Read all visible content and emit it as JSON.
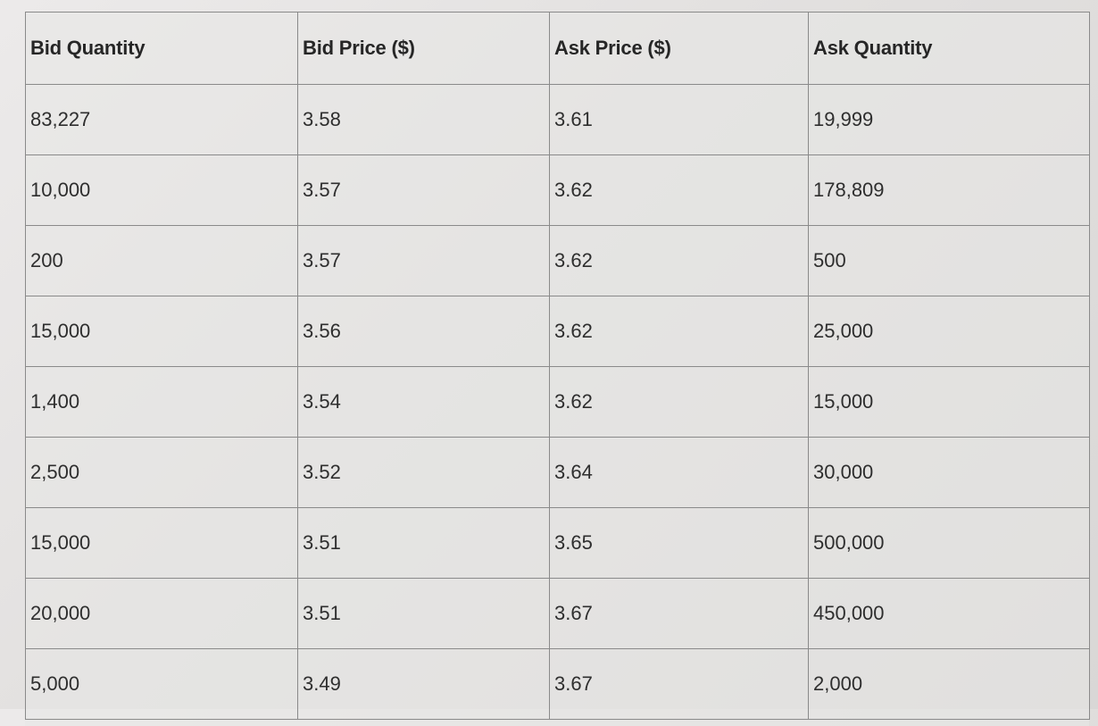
{
  "table": {
    "headers": [
      "Bid Quantity",
      "Bid Price ($)",
      "Ask Price ($)",
      "Ask Quantity"
    ],
    "rows": [
      [
        "83,227",
        "3.58",
        "3.61",
        "19,999"
      ],
      [
        "10,000",
        "3.57",
        "3.62",
        "178,809"
      ],
      [
        "200",
        "3.57",
        "3.62",
        "500"
      ],
      [
        "15,000",
        "3.56",
        "3.62",
        "25,000"
      ],
      [
        "1,400",
        "3.54",
        "3.62",
        "15,000"
      ],
      [
        "2,500",
        "3.52",
        "3.64",
        "30,000"
      ],
      [
        "15,000",
        "3.51",
        "3.65",
        "500,000"
      ],
      [
        "20,000",
        "3.51",
        "3.67",
        "450,000"
      ],
      [
        "5,000",
        "3.49",
        "3.67",
        "2,000"
      ]
    ]
  }
}
